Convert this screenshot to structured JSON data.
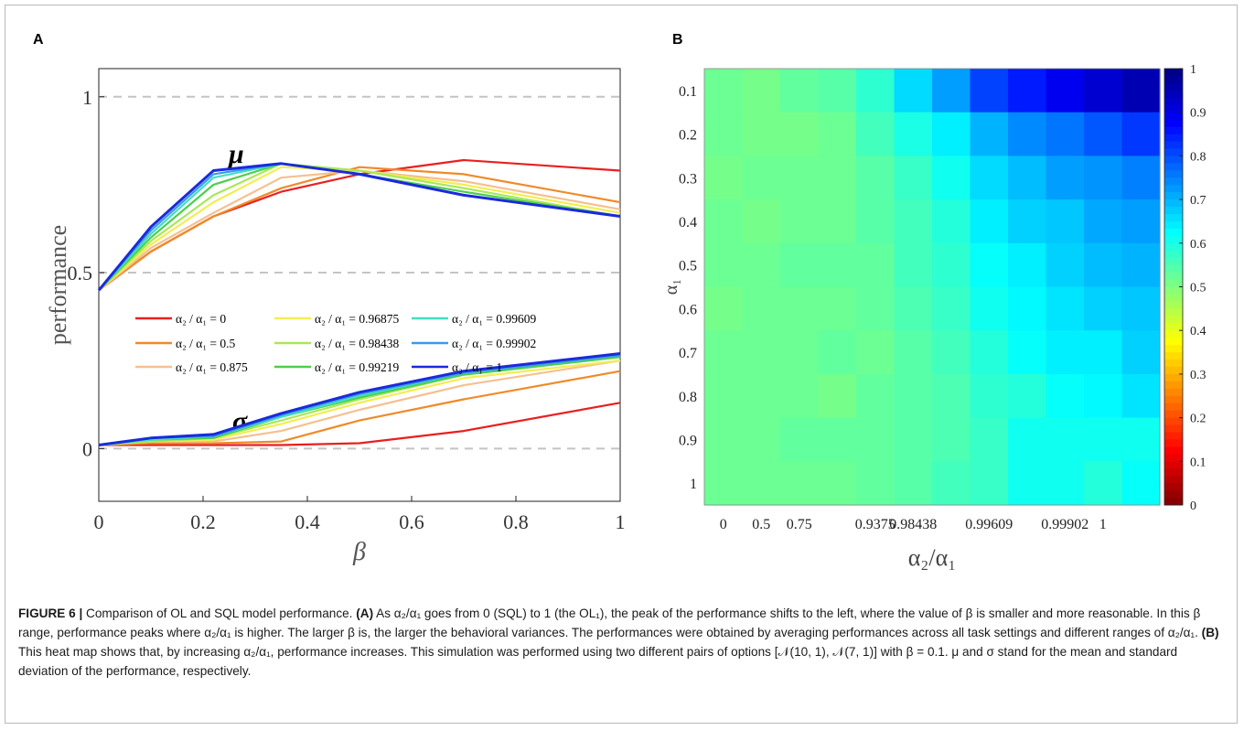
{
  "panels": {
    "a_label": "A",
    "b_label": "B"
  },
  "caption": {
    "figure_label": "FIGURE 6 |",
    "part1": " Comparison of OL and SQL model performance. ",
    "a_tag": "(A)",
    "part2": " As α₂/α₁ goes from 0 (SQL) to 1 (the OL₁), the peak of the performance shifts to the left, where the value of β is smaller and more reasonable. In this β range, performance peaks where α₂/α₁ is higher. The larger β is, the larger the behavioral variances. The performances were obtained by averaging performances across all task settings and different ranges of α₂/α₁. ",
    "b_tag": "(B)",
    "part3": " This heat map shows that, by increasing α₂/α₁, performance increases. This simulation was performed using two different pairs of options [𝒩(10, 1), 𝒩(7, 1)] with β = 0.1. μ and σ stand for the mean and standard deviation of the performance, respectively."
  },
  "chart_data": [
    {
      "type": "line",
      "panel": "A",
      "xlabel": "β",
      "ylabel": "performance",
      "xlim": [
        0,
        1
      ],
      "ylim": [
        -0.15,
        1.08
      ],
      "xticks": [
        "0",
        "0.2",
        "0.4",
        "0.6",
        "0.8",
        "1"
      ],
      "xtick_values": [
        0,
        0.2,
        0.4,
        0.6,
        0.8,
        1
      ],
      "yticks": [
        "0",
        "0.5",
        "1"
      ],
      "ytick_values": [
        0,
        0.5,
        1
      ],
      "ref_lines": [
        0,
        0.5,
        1
      ],
      "annotations": {
        "mu": "μ",
        "sigma": "σ"
      },
      "x": [
        0,
        0.1,
        0.22,
        0.35,
        0.5,
        0.7,
        1
      ],
      "series": [
        {
          "name": "α₂ / α₁ = 0",
          "color": "#e8201e",
          "mu": [
            0.45,
            0.56,
            0.66,
            0.73,
            0.78,
            0.82,
            0.79
          ],
          "sigma": [
            0.01,
            0.01,
            0.01,
            0.01,
            0.015,
            0.05,
            0.13
          ]
        },
        {
          "name": "α₂ / α₁ = 0.5",
          "color": "#f08a28",
          "mu": [
            0.45,
            0.56,
            0.66,
            0.74,
            0.8,
            0.78,
            0.7
          ],
          "sigma": [
            0.01,
            0.015,
            0.015,
            0.02,
            0.08,
            0.14,
            0.22
          ]
        },
        {
          "name": "α₂ / α₁ = 0.875",
          "color": "#f5c090",
          "mu": [
            0.45,
            0.57,
            0.67,
            0.77,
            0.79,
            0.76,
            0.68
          ],
          "sigma": [
            0.01,
            0.02,
            0.02,
            0.05,
            0.11,
            0.18,
            0.25
          ]
        },
        {
          "name": "α₂ / α₁ = 0.96875",
          "color": "#f2ee50",
          "mu": [
            0.45,
            0.58,
            0.7,
            0.8,
            0.79,
            0.75,
            0.67
          ],
          "sigma": [
            0.01,
            0.02,
            0.025,
            0.07,
            0.13,
            0.2,
            0.25
          ]
        },
        {
          "name": "α₂ / α₁ = 0.98438",
          "color": "#a8e858",
          "mu": [
            0.45,
            0.59,
            0.72,
            0.81,
            0.79,
            0.74,
            0.66
          ],
          "sigma": [
            0.01,
            0.02,
            0.03,
            0.08,
            0.14,
            0.21,
            0.26
          ]
        },
        {
          "name": "α₂ / α₁ = 0.99219",
          "color": "#4ccf4c",
          "mu": [
            0.45,
            0.6,
            0.75,
            0.81,
            0.78,
            0.73,
            0.66
          ],
          "sigma": [
            0.01,
            0.025,
            0.03,
            0.09,
            0.145,
            0.21,
            0.26
          ]
        },
        {
          "name": "α₂ / α₁ = 0.99609",
          "color": "#40e0c0",
          "mu": [
            0.45,
            0.61,
            0.77,
            0.81,
            0.78,
            0.72,
            0.66
          ],
          "sigma": [
            0.01,
            0.025,
            0.035,
            0.09,
            0.15,
            0.215,
            0.265
          ]
        },
        {
          "name": "α₂ / α₁ = 0.99902",
          "color": "#3a9ae8",
          "mu": [
            0.45,
            0.62,
            0.78,
            0.81,
            0.78,
            0.72,
            0.66
          ],
          "sigma": [
            0.01,
            0.03,
            0.035,
            0.095,
            0.155,
            0.215,
            0.265
          ]
        },
        {
          "name": "α₂ / α₁ = 1",
          "color": "#1a2adc",
          "mu": [
            0.45,
            0.63,
            0.79,
            0.81,
            0.78,
            0.72,
            0.66
          ],
          "sigma": [
            0.01,
            0.03,
            0.04,
            0.1,
            0.16,
            0.22,
            0.27
          ]
        }
      ]
    },
    {
      "type": "heatmap",
      "panel": "B",
      "xlabel": "α₂/α₁",
      "ylabel": "α₁",
      "xtick_labels": [
        "0",
        "0.5",
        "0.75",
        "0.9375",
        "0.98438",
        "0.99609",
        "0.99902",
        "1"
      ],
      "xtick_columns": [
        0,
        1,
        2,
        4,
        5,
        7,
        9,
        10
      ],
      "ytick_labels": [
        "0.1",
        "0.2",
        "0.3",
        "0.4",
        "0.5",
        "0.6",
        "0.7",
        "0.8",
        "0.9",
        "1"
      ],
      "colorbar_ticks": [
        "0",
        "0.1",
        "0.2",
        "0.3",
        "0.4",
        "0.5",
        "0.6",
        "0.7",
        "0.8",
        "0.9",
        "1"
      ],
      "colormap": "jet-reversed",
      "clim": [
        0,
        1
      ],
      "values": [
        [
          0.52,
          0.51,
          0.53,
          0.54,
          0.58,
          0.66,
          0.72,
          0.81,
          0.85,
          0.89,
          0.92,
          0.95
        ],
        [
          0.52,
          0.51,
          0.51,
          0.52,
          0.56,
          0.6,
          0.64,
          0.7,
          0.74,
          0.76,
          0.79,
          0.82
        ],
        [
          0.51,
          0.52,
          0.52,
          0.52,
          0.54,
          0.57,
          0.61,
          0.66,
          0.69,
          0.72,
          0.73,
          0.75
        ],
        [
          0.52,
          0.51,
          0.52,
          0.52,
          0.54,
          0.56,
          0.59,
          0.64,
          0.67,
          0.68,
          0.71,
          0.72
        ],
        [
          0.52,
          0.52,
          0.53,
          0.53,
          0.53,
          0.56,
          0.58,
          0.62,
          0.64,
          0.67,
          0.69,
          0.7
        ],
        [
          0.51,
          0.52,
          0.52,
          0.52,
          0.53,
          0.55,
          0.57,
          0.61,
          0.63,
          0.65,
          0.67,
          0.68
        ],
        [
          0.52,
          0.52,
          0.52,
          0.53,
          0.52,
          0.54,
          0.56,
          0.59,
          0.62,
          0.64,
          0.64,
          0.67
        ],
        [
          0.52,
          0.52,
          0.52,
          0.51,
          0.53,
          0.54,
          0.55,
          0.58,
          0.59,
          0.62,
          0.63,
          0.65
        ],
        [
          0.52,
          0.52,
          0.53,
          0.53,
          0.53,
          0.54,
          0.55,
          0.57,
          0.61,
          0.61,
          0.61,
          0.61
        ],
        [
          0.52,
          0.52,
          0.52,
          0.52,
          0.53,
          0.54,
          0.56,
          0.57,
          0.61,
          0.61,
          0.59,
          0.62
        ]
      ]
    }
  ]
}
